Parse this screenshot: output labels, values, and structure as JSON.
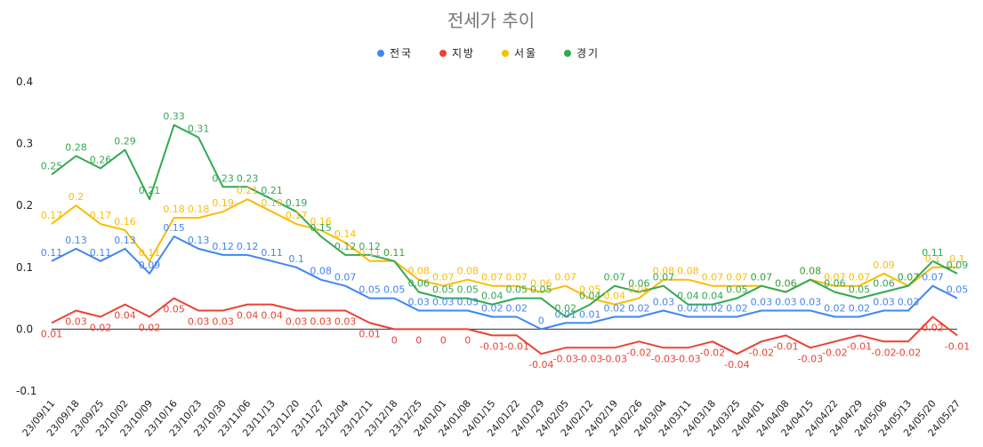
{
  "chart_data": {
    "type": "line",
    "title": "전세가 추이",
    "xlabel": "",
    "ylabel": "",
    "ylim": [
      -0.1,
      0.4
    ],
    "yticks": [
      "0.4",
      "0.3",
      "0.2",
      "0.1",
      "0.0",
      "-0.1"
    ],
    "ytick_values": [
      0.4,
      0.3,
      0.2,
      0.1,
      0.0,
      -0.1
    ],
    "legend_position": "top-center",
    "grid": false,
    "categories": [
      "23/09/11",
      "23/09/18",
      "23/09/25",
      "23/10/02",
      "23/10/09",
      "23/10/16",
      "23/10/23",
      "23/10/30",
      "23/11/06",
      "23/11/13",
      "23/11/20",
      "23/11/27",
      "23/12/04",
      "23/12/11",
      "23/12/18",
      "23/12/25",
      "24/01/01",
      "24/01/08",
      "24/01/15",
      "24/01/22",
      "24/01/29",
      "24/02/05",
      "24/02/12",
      "24/02/19",
      "24/02/26",
      "24/03/04",
      "24/03/11",
      "24/03/18",
      "24/03/25",
      "24/04/01",
      "24/04/08",
      "24/04/15",
      "24/04/22",
      "24/04/29",
      "24/05/06",
      "24/05/13",
      "24/05/20",
      "24/05/27"
    ],
    "series": [
      {
        "name": "전국",
        "color": "#4285f4",
        "label_pos": "above",
        "values": [
          0.11,
          0.13,
          0.11,
          0.13,
          0.09,
          0.15,
          0.13,
          0.12,
          0.12,
          0.11,
          0.1,
          0.08,
          0.07,
          0.05,
          0.05,
          0.03,
          0.03,
          0.03,
          0.02,
          0.02,
          0,
          0.01,
          0.01,
          0.02,
          0.02,
          0.03,
          0.02,
          0.02,
          0.02,
          0.03,
          0.03,
          0.03,
          0.02,
          0.02,
          0.03,
          0.03,
          0.07,
          0.05
        ]
      },
      {
        "name": "지방",
        "color": "#ea4335",
        "label_pos": "below",
        "values": [
          0.01,
          0.03,
          0.02,
          0.04,
          0.02,
          0.05,
          0.03,
          0.03,
          0.04,
          0.04,
          0.03,
          0.03,
          0.03,
          0.01,
          0,
          0,
          0,
          0,
          -0.01,
          -0.01,
          -0.04,
          -0.03,
          -0.03,
          -0.03,
          -0.02,
          -0.03,
          -0.03,
          -0.02,
          -0.04,
          -0.02,
          -0.01,
          -0.03,
          -0.02,
          -0.01,
          -0.02,
          -0.02,
          0.02,
          -0.01
        ]
      },
      {
        "name": "서울",
        "color": "#fbbc04",
        "label_pos": "above",
        "values": [
          0.17,
          0.2,
          0.17,
          0.16,
          0.11,
          0.18,
          0.18,
          0.19,
          0.21,
          0.19,
          0.17,
          0.16,
          0.14,
          0.11,
          0.11,
          0.08,
          0.07,
          0.08,
          0.07,
          0.07,
          0.06,
          0.07,
          0.05,
          0.04,
          0.05,
          0.08,
          0.08,
          0.07,
          0.07,
          0.07,
          0.06,
          0.08,
          0.07,
          0.07,
          0.09,
          0.07,
          0.1,
          0.1
        ]
      },
      {
        "name": "경기",
        "color": "#34a853",
        "label_pos": "above",
        "values": [
          0.25,
          0.28,
          0.26,
          0.29,
          0.21,
          0.33,
          0.31,
          0.23,
          0.23,
          0.21,
          0.19,
          0.15,
          0.12,
          0.12,
          0.11,
          0.06,
          0.05,
          0.05,
          0.04,
          0.05,
          0.05,
          0.02,
          0.04,
          0.07,
          0.06,
          0.07,
          0.04,
          0.04,
          0.05,
          0.07,
          0.06,
          0.08,
          0.06,
          0.05,
          0.06,
          0.07,
          0.11,
          0.09
        ]
      }
    ]
  }
}
